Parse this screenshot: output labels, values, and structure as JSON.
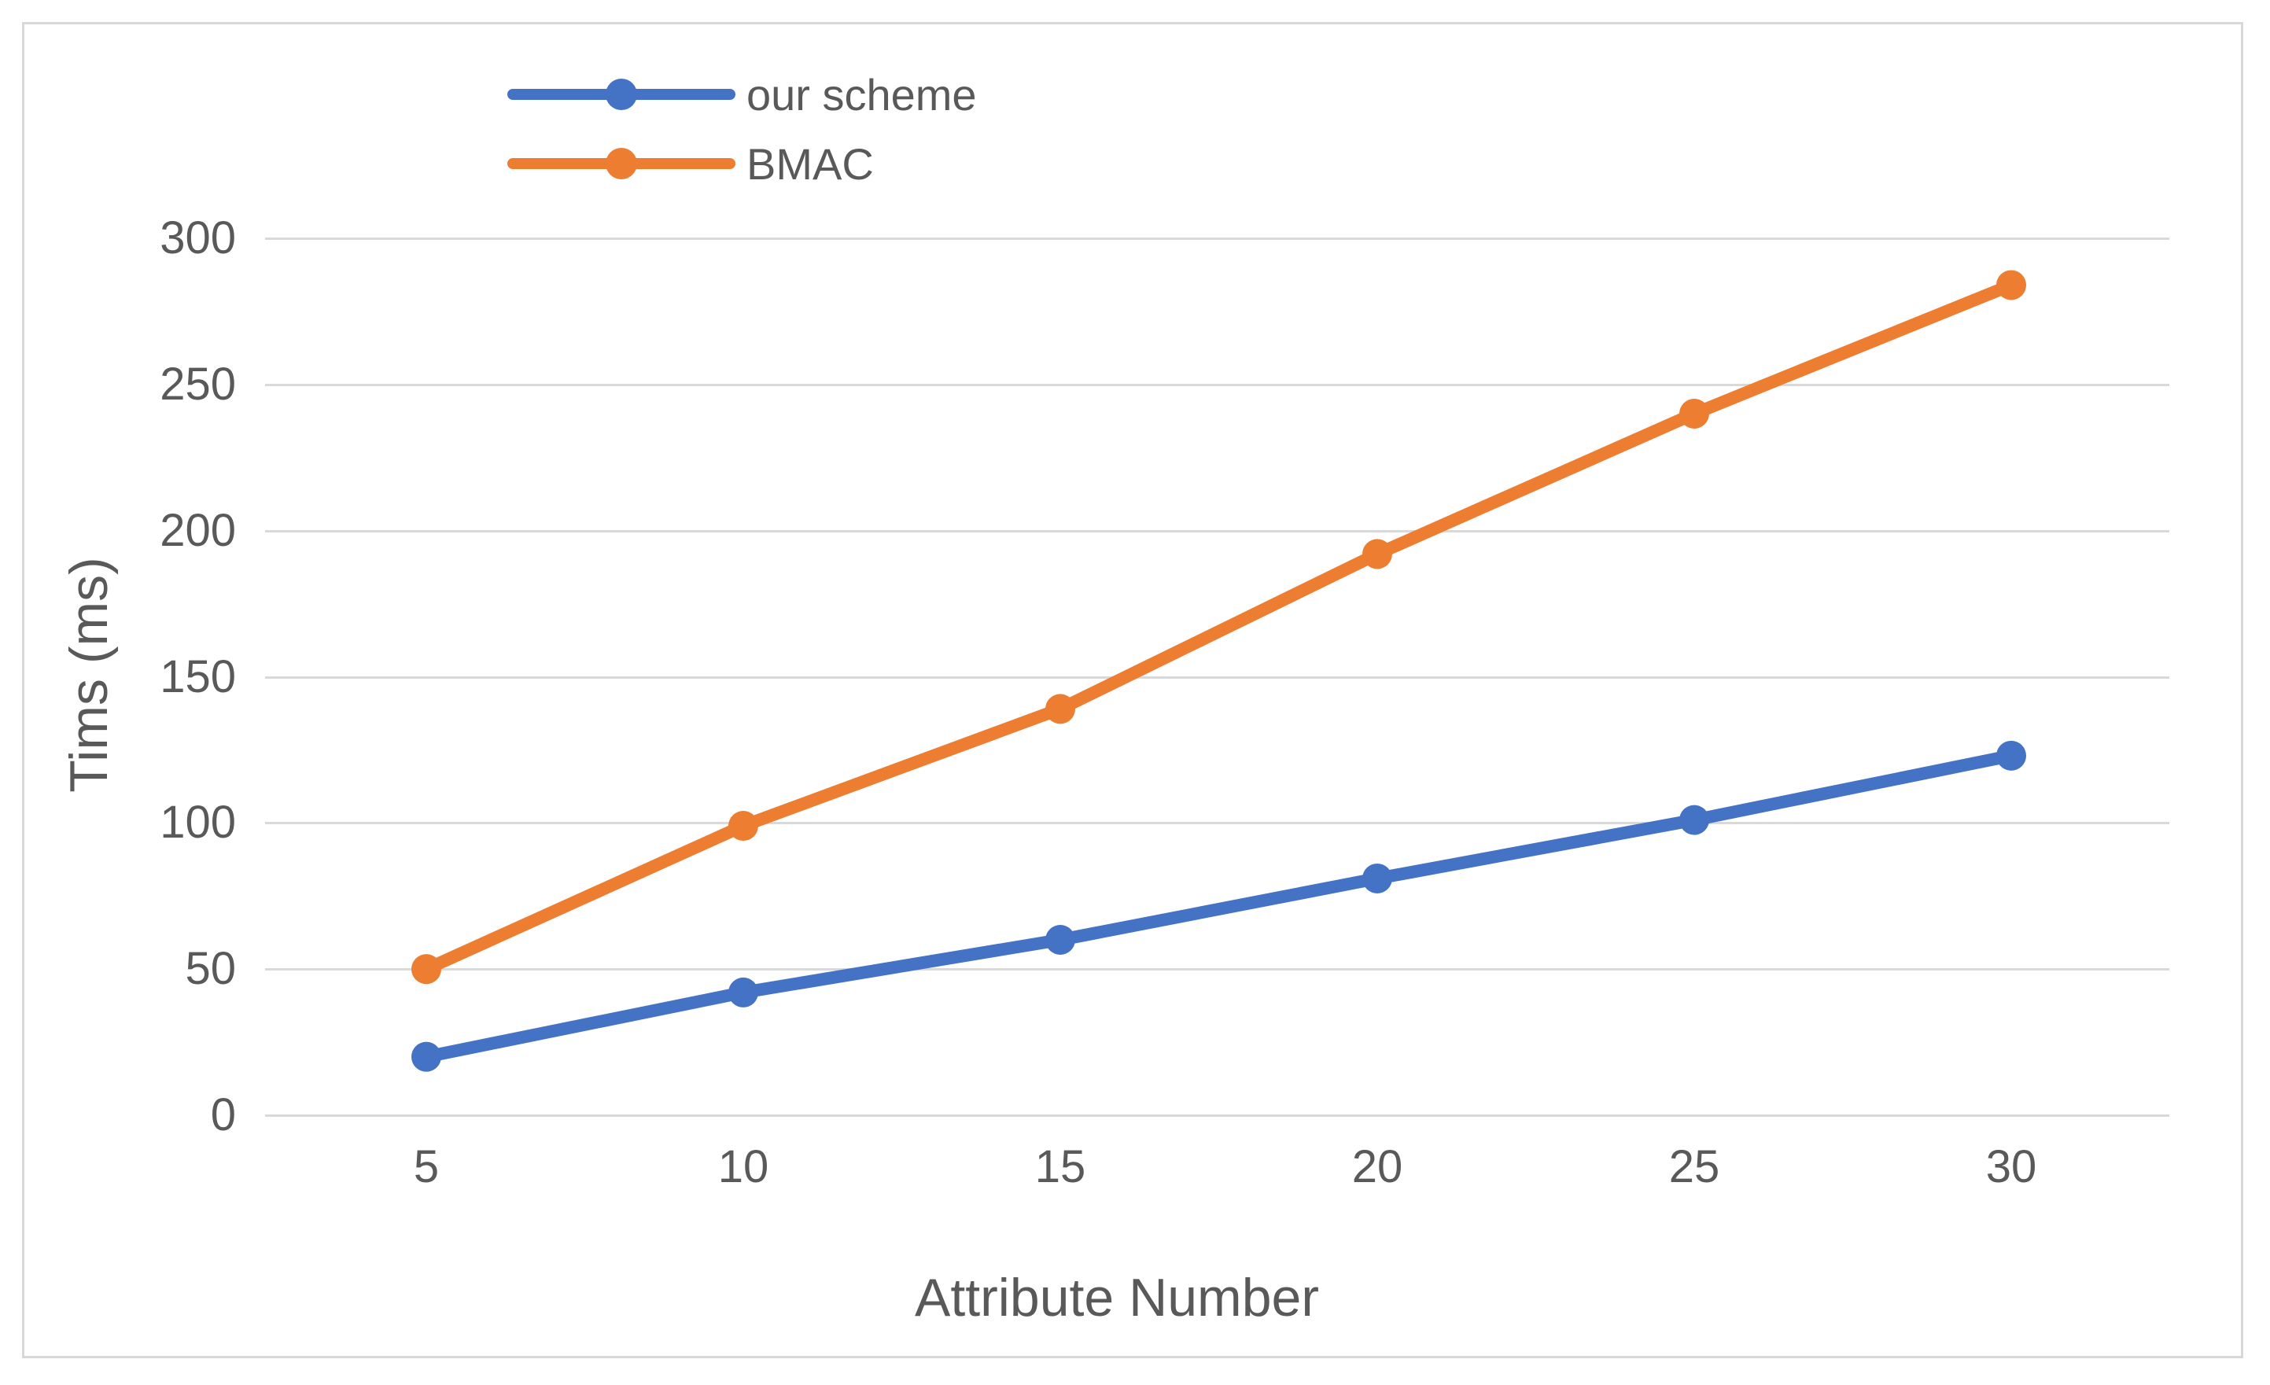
{
  "chart_data": {
    "type": "line",
    "title": "",
    "xlabel": "Attribute Number",
    "ylabel": "Tims (ms)",
    "x": [
      5,
      10,
      15,
      20,
      25,
      30
    ],
    "yticks": [
      0,
      50,
      100,
      150,
      200,
      250,
      300
    ],
    "ylim": [
      0,
      300
    ],
    "grid": "horizontal-only",
    "legend_position": "top-left-inside",
    "series": [
      {
        "name": "our scheme",
        "color": "#4472C4",
        "values": [
          20,
          42,
          60,
          81,
          101,
          123
        ]
      },
      {
        "name": "BMAC",
        "color": "#ED7D31",
        "values": [
          50,
          99,
          139,
          192,
          240,
          284
        ]
      }
    ],
    "colors": {
      "background": "#FFFFFF",
      "frame_border": "#D9D9D9",
      "gridline": "#D9D9D9",
      "axis_text": "#595959"
    }
  }
}
